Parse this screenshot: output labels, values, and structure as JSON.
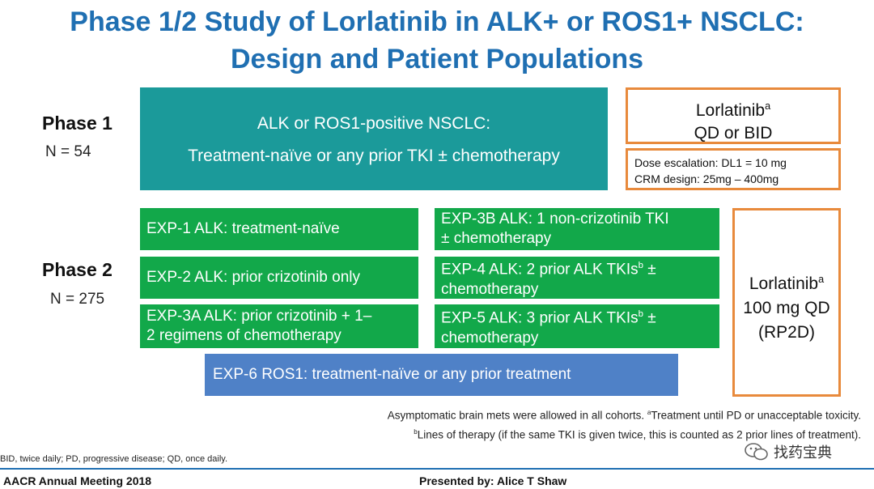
{
  "title": {
    "line1": "Phase 1/2 Study of Lorlatinib in ALK+ or ROS1+ NSCLC:",
    "line2": "Design and Patient Populations"
  },
  "phase1": {
    "label": "Phase 1",
    "n": "N = 54",
    "population_line1": "ALK or ROS1-positive NSCLC:",
    "population_line2": "Treatment-naïve or any prior TKI ± chemotherapy",
    "drug_name": "Lorlatinib",
    "drug_sup": "a",
    "drug_regimen": "QD or BID",
    "dose_line1": "Dose escalation: DL1 = 10 mg",
    "dose_line2": "CRM design:  25mg – 400mg"
  },
  "phase2": {
    "label": "Phase 2",
    "n": "N = 275",
    "cohorts_left": [
      "EXP-1   ALK: treatment-naïve",
      "EXP-2   ALK: prior crizotinib only",
      "EXP-3A  ALK: prior crizotinib + 1–\n2 regimens of chemotherapy"
    ],
    "cohort_3b": "EXP-3B  ALK: 1 non-crizotinib TKI\n± chemotherapy",
    "cohort_4_a": "EXP-4   ALK: 2 prior ALK TKIs",
    "cohort_4_sup": "b",
    "cohort_4_b": " ±\nchemotherapy",
    "cohort_5_a": "EXP-5  ALK:  3 prior ALK TKIs",
    "cohort_5_sup": "b",
    "cohort_5_b": " ±\nchemotherapy",
    "cohort_6": "EXP-6 ROS1: treatment-naïve or any prior treatment",
    "drug_name": "Lorlatinib",
    "drug_sup": "a",
    "drug_dose": "100 mg QD",
    "drug_rp2d": "(RP2D)"
  },
  "notes": {
    "line1_a": "Asymptomatic brain mets were allowed in all cohorts. ",
    "line1_sup": "a",
    "line1_b": "Treatment until PD or unacceptable toxicity.",
    "line2_sup": "b",
    "line2_b": "Lines of therapy (if the same TKI is given twice, this is counted as 2 prior lines of treatment)."
  },
  "abbreviations": "BID, twice daily; PD, progressive disease; QD, once daily.",
  "footer": {
    "meeting": "AACR Annual Meeting 2018",
    "presenter": "Presented by: Alice T Shaw"
  },
  "watermark": {
    "icon": "wechat-icon",
    "text": "找药宝典"
  },
  "colors": {
    "title": "#1f6fb2",
    "teal": "#1b9a9a",
    "green": "#12a84a",
    "blue": "#4f81c7",
    "orange": "#e88a3c"
  }
}
